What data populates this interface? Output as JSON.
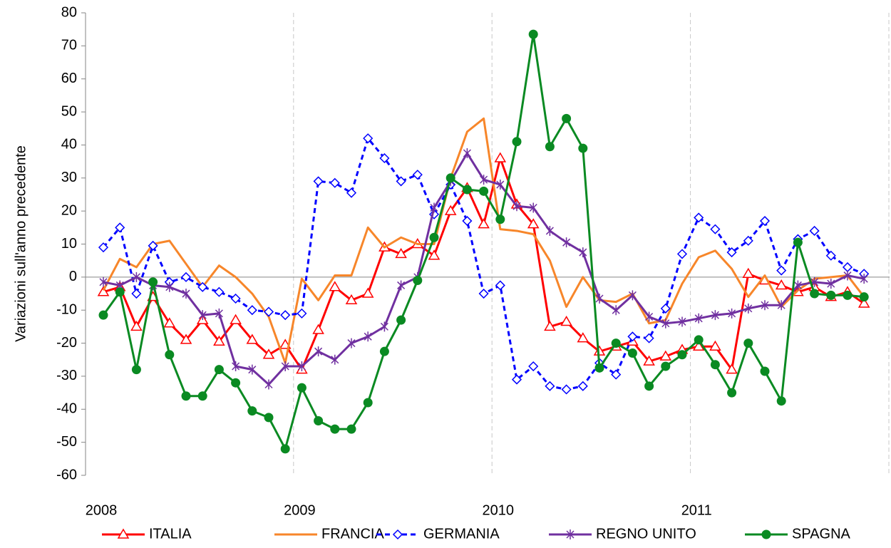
{
  "chart_data": {
    "type": "line",
    "y_label": "Variazioni sull'anno precedente",
    "categories": [
      "2008",
      null,
      null,
      null,
      null,
      null,
      null,
      null,
      null,
      null,
      null,
      null,
      "2009",
      null,
      null,
      null,
      null,
      null,
      null,
      null,
      null,
      null,
      null,
      null,
      "2010",
      null,
      null,
      null,
      null,
      null,
      null,
      null,
      null,
      null,
      null,
      null,
      "2011",
      null,
      null,
      null,
      null,
      null,
      null,
      null,
      null,
      null,
      null
    ],
    "ylim": [
      -60,
      80
    ],
    "yticks": [
      -60,
      -50,
      -40,
      -30,
      -20,
      -10,
      0,
      10,
      20,
      30,
      40,
      50,
      60,
      70,
      80
    ],
    "legend": "bottom",
    "series": [
      {
        "name": "ITALIA",
        "color": "#ff0000",
        "marker": "triangle",
        "values": [
          -4.5,
          -3,
          -15,
          -6,
          -14,
          -19,
          -13,
          -19.5,
          -13,
          -19,
          -23.5,
          -20.5,
          -28,
          -16,
          -3,
          -7,
          -5,
          9,
          7,
          10,
          6.5,
          20,
          27,
          16,
          36,
          22,
          16,
          -15,
          -13.5,
          -18.5,
          -22.5,
          -21,
          -19.5,
          -25.5,
          -24,
          -22,
          -21,
          -21,
          -28,
          1,
          -1,
          -2.5,
          -4.5,
          -3,
          -6,
          -4.5,
          -8
        ]
      },
      {
        "name": "FRANCIA",
        "color": "#f7862a",
        "marker": "none",
        "values": [
          -4,
          5.5,
          3,
          10,
          11,
          4,
          -3,
          3.5,
          0,
          -5,
          -12,
          -26,
          -0.5,
          -7,
          0.5,
          0.5,
          15,
          9,
          12,
          10,
          10,
          30,
          44,
          48,
          14.5,
          14,
          13,
          5,
          -9,
          0,
          -7,
          -7.5,
          -5,
          -14,
          -13,
          -2,
          6,
          8,
          2.5,
          -6,
          0.5,
          -9,
          -4,
          -0.5,
          0,
          0.5,
          -6
        ]
      },
      {
        "name": "GERMANIA",
        "color": "#0000ff",
        "marker": "diamond",
        "dashed": true,
        "values": [
          9,
          15,
          -5,
          9.5,
          -1.5,
          0,
          -3,
          -4.5,
          -6.5,
          -10,
          -10.5,
          -11.5,
          -11,
          29,
          28.5,
          25.5,
          42,
          36,
          29,
          31,
          19,
          28,
          17,
          -5,
          -2.5,
          -31,
          -27,
          -33,
          -34,
          -33,
          -26,
          -29.5,
          -18,
          -18.5,
          -9.5,
          7,
          18,
          14.5,
          7.5,
          11,
          17,
          2,
          11.5,
          14,
          6.5,
          3,
          1
        ]
      },
      {
        "name": "REGNO UNITO",
        "color": "#7030a0",
        "marker": "star",
        "values": [
          -1.5,
          -2.5,
          0,
          -2.5,
          -3,
          -5,
          -11.5,
          -11,
          -27,
          -28,
          -32.5,
          -27,
          -27,
          -22.5,
          -25,
          -20,
          -18,
          -15,
          -2.5,
          0,
          21,
          29,
          37.5,
          29.5,
          28,
          21.5,
          21,
          14,
          10.5,
          7.5,
          -6.5,
          -10,
          -5.5,
          -12,
          -14,
          -13.5,
          -12.5,
          -11.5,
          -11,
          -9.5,
          -8.5,
          -8.5,
          -2.5,
          -1.5,
          -2,
          0.5,
          -0.5
        ]
      },
      {
        "name": "SPAGNA",
        "color": "#0a8a22",
        "marker": "circle",
        "values": [
          -11.5,
          -4.5,
          -28,
          -1.5,
          -23.5,
          -36,
          -36,
          -28,
          -32,
          -40.5,
          -42.5,
          -52,
          -33.5,
          -43.5,
          -46,
          -46,
          -38,
          -22.5,
          -13,
          -1,
          12,
          30,
          26.5,
          26,
          17.5,
          41,
          73.5,
          39.5,
          48,
          39,
          -27.5,
          -20,
          -23,
          -33,
          -27,
          -23.5,
          -19,
          -26.5,
          -35,
          -20,
          -28.5,
          -37.5,
          10.5,
          -5,
          -5.5,
          -5.5,
          -6
        ]
      }
    ]
  }
}
